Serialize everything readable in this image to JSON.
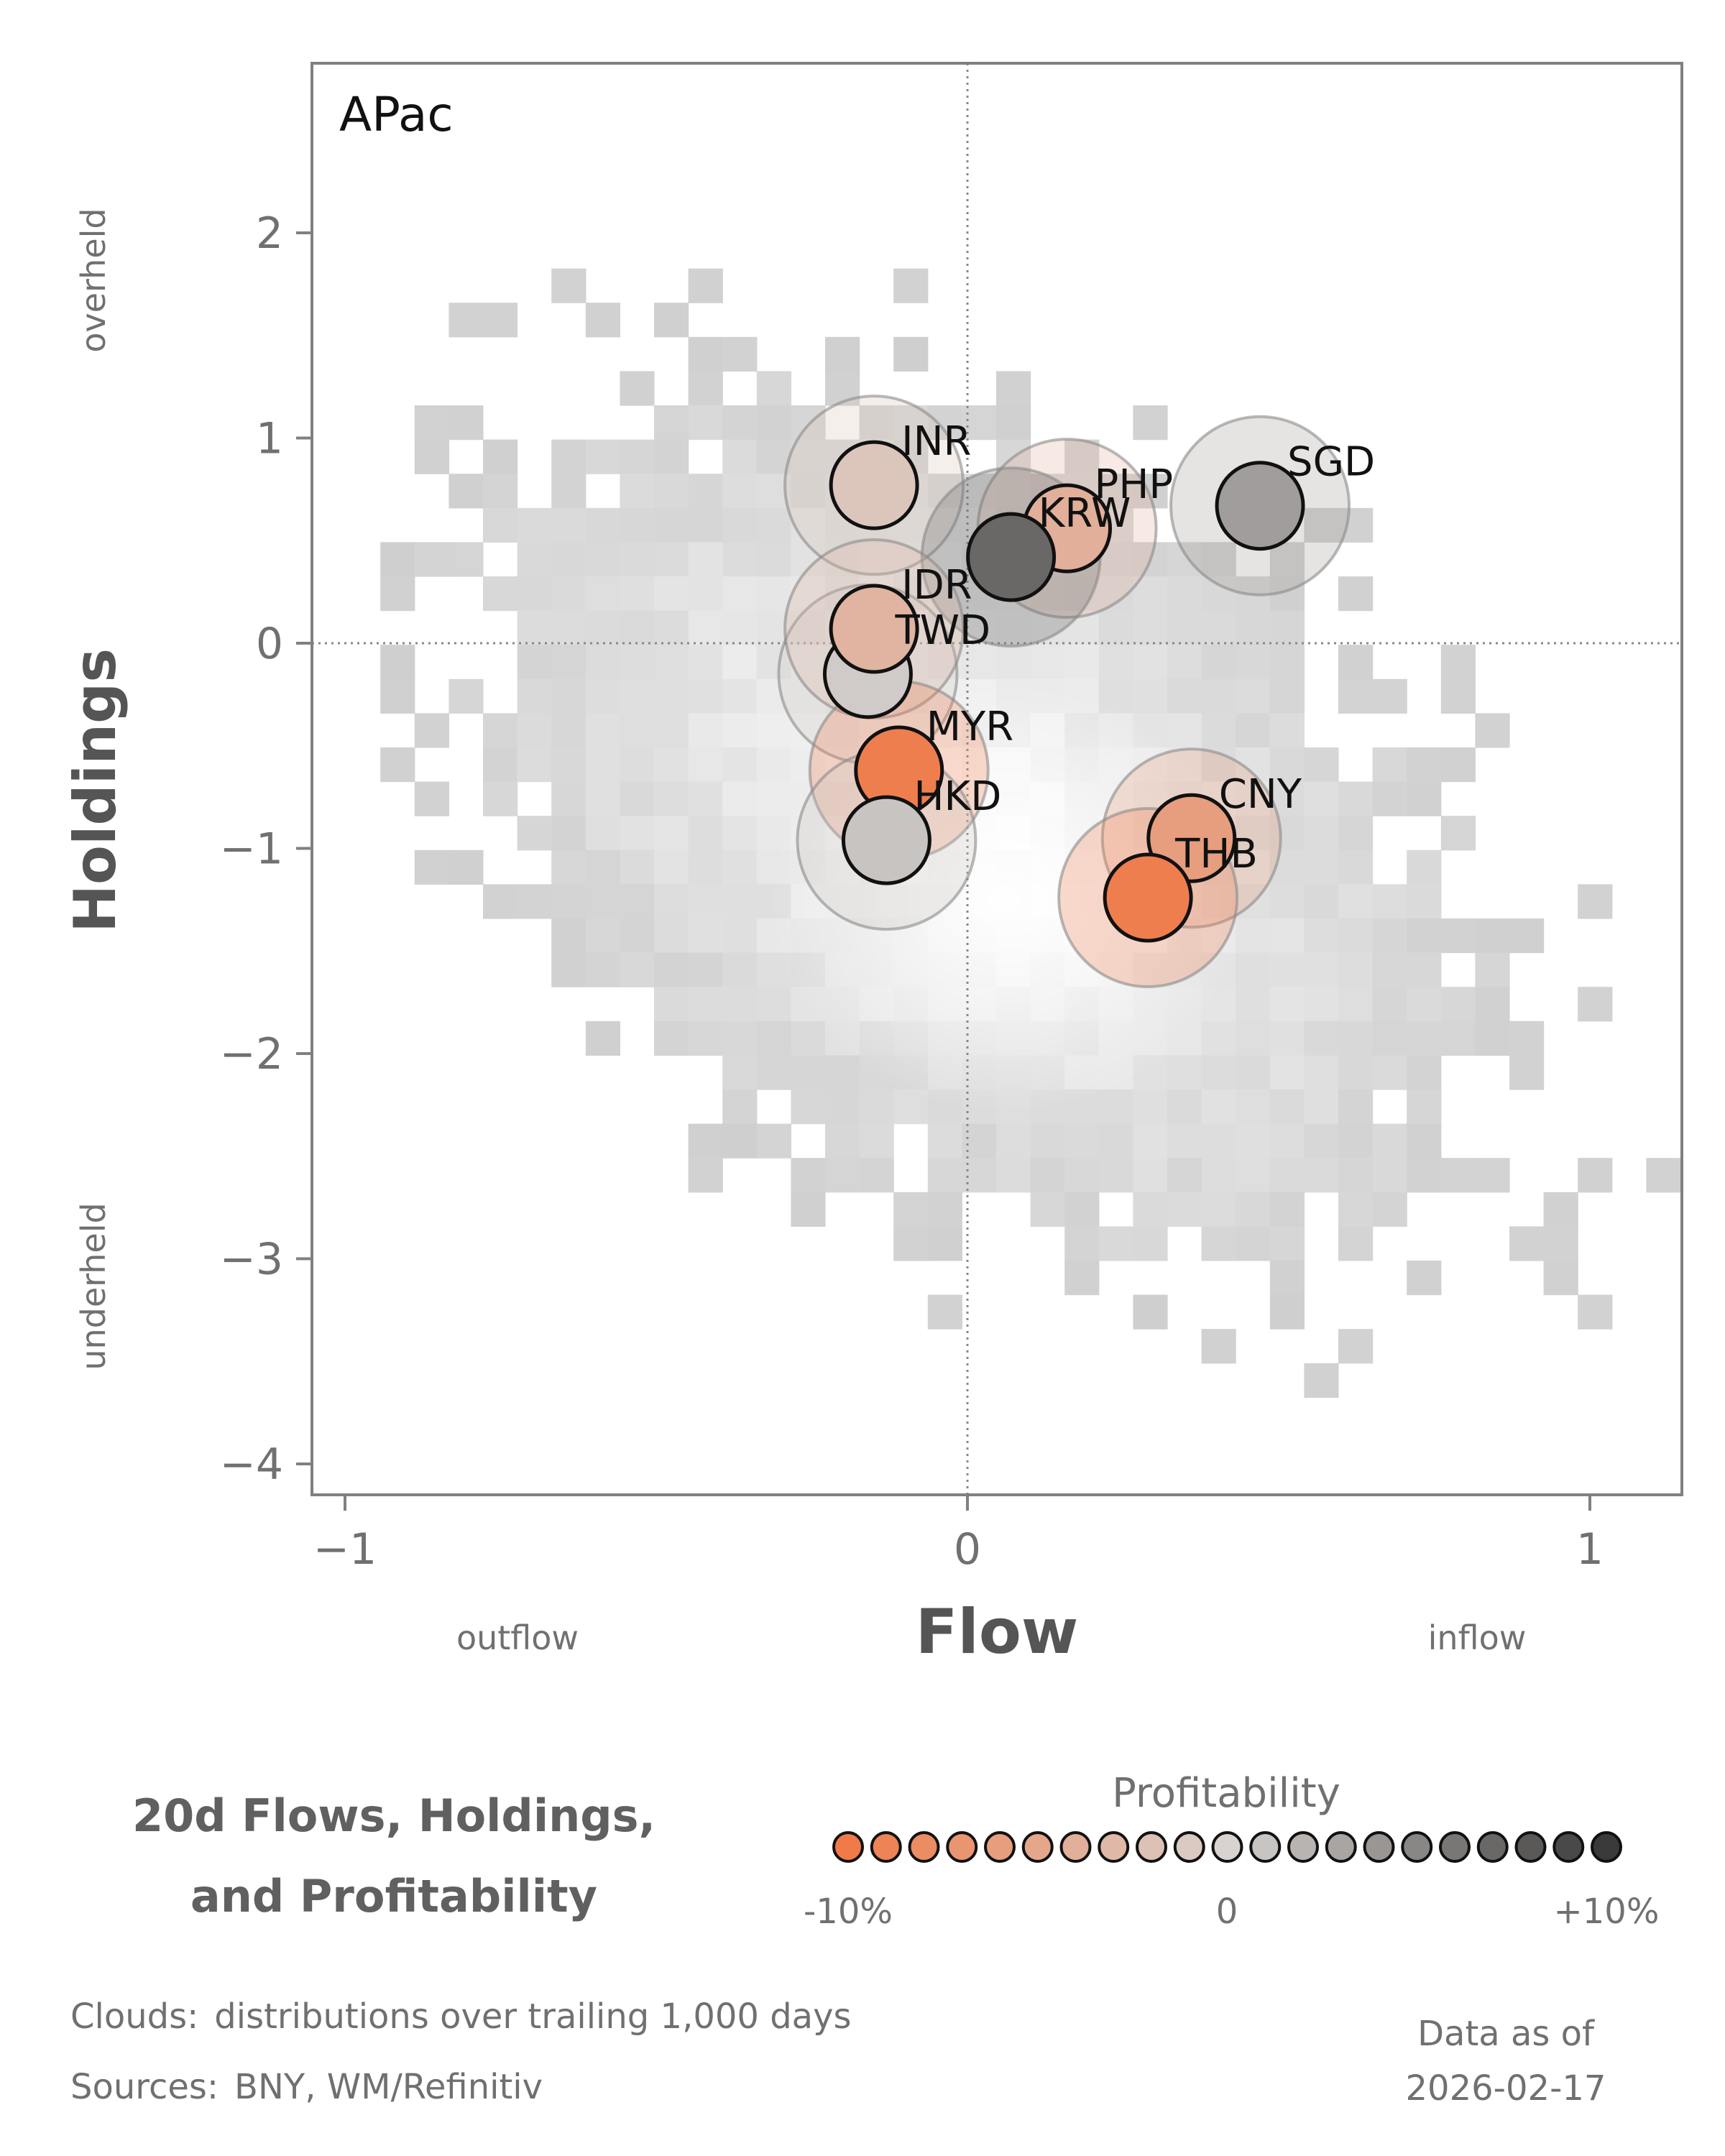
{
  "chart_data": {
    "type": "scatter",
    "panel_label": "APac",
    "xlabel": "Flow",
    "ylabel": "Holdings",
    "x_ticks": [
      "−1",
      "0",
      "1"
    ],
    "y_ticks": [
      "2",
      "1",
      "0",
      "−1",
      "−2",
      "−3",
      "−4"
    ],
    "x_annotations": {
      "left": "outflow",
      "right": "inflow"
    },
    "y_annotations": {
      "top": "overheld",
      "bottom": "underheld"
    },
    "xlim": [
      -1.05,
      1.15
    ],
    "ylim": [
      -4.15,
      2.85
    ],
    "points": [
      {
        "label": "INR",
        "flow": -0.15,
        "holdings": 0.77,
        "profitability": -1.5
      },
      {
        "label": "SGD",
        "flow": 0.47,
        "holdings": 0.67,
        "profitability": 3.5
      },
      {
        "label": "PHP",
        "flow": 0.16,
        "holdings": 0.56,
        "profitability": -4.0
      },
      {
        "label": "KRW",
        "flow": 0.07,
        "holdings": 0.42,
        "profitability": 7.0
      },
      {
        "label": "TWD",
        "flow": -0.16,
        "holdings": -0.15,
        "profitability": 0.5
      },
      {
        "label": "IDR",
        "flow": -0.15,
        "holdings": 0.07,
        "profitability": -3.5
      },
      {
        "label": "MYR",
        "flow": -0.11,
        "holdings": -0.62,
        "profitability": -9.5
      },
      {
        "label": "HKD",
        "flow": -0.13,
        "holdings": -0.96,
        "profitability": 1.0
      },
      {
        "label": "CNY",
        "flow": 0.36,
        "holdings": -0.95,
        "profitability": -6.0
      },
      {
        "label": "THB",
        "flow": 0.29,
        "holdings": -1.24,
        "profitability": -9.5
      }
    ],
    "cloud_description": "distributions over trailing 1,000 days",
    "colorbar": {
      "title": "Profitability",
      "min_label": "-10%",
      "mid_label": "0",
      "max_label": "+10%",
      "range": [
        -10,
        10
      ],
      "low_color": "#f07a48",
      "mid_color": "#d8d3d0",
      "high_color": "#3a3a3a"
    }
  },
  "title_line1": "20d Flows, Holdings,",
  "title_line2": "and Profitability",
  "footer": {
    "clouds_prefix": "Clouds:",
    "clouds_text": "distributions over trailing 1,000 days",
    "sources_prefix": "Sources:",
    "sources_text": "BNY, WM/Refinitiv",
    "data_as_of_label": "Data as of",
    "data_as_of_date": "2026-02-17"
  }
}
